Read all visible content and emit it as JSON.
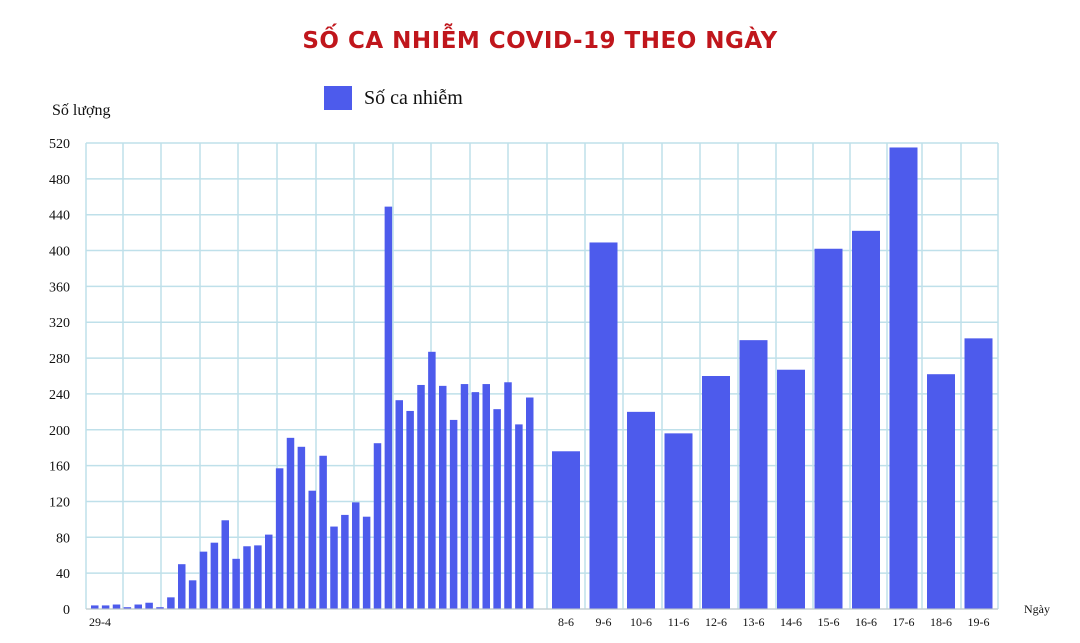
{
  "chart_data": {
    "type": "bar",
    "title": "SỐ CA NHIỄM COVID-19 THEO NGÀY",
    "ylabel": "Số lượng",
    "xlabel": "Ngày",
    "legend": {
      "label": "Số ca nhiễm",
      "position": "top-left"
    },
    "ylim": [
      0,
      520
    ],
    "yticks": [
      0,
      40,
      80,
      120,
      160,
      200,
      240,
      280,
      320,
      360,
      400,
      440,
      480,
      520
    ],
    "grid": true,
    "colors": {
      "bar": "#4d5bec",
      "grid": "#bfe0ea",
      "title": "#c0161c"
    },
    "series": [
      {
        "name": "Số ca nhiễm",
        "values": [
          4,
          4,
          5,
          2,
          5,
          7,
          2,
          13,
          50,
          32,
          64,
          74,
          99,
          56,
          70,
          71,
          83,
          157,
          191,
          181,
          132,
          171,
          92,
          105,
          119,
          103,
          185,
          449,
          233,
          221,
          250,
          287,
          249,
          211,
          251,
          242,
          251,
          223,
          253,
          206,
          236
        ],
        "x_labels": [
          "29-4",
          "",
          "",
          "",
          "",
          "",
          "",
          "",
          "",
          "",
          "",
          "",
          "",
          "",
          "",
          "",
          "",
          "",
          "",
          "",
          "",
          "",
          "",
          "",
          "",
          "",
          "",
          "",
          "",
          "",
          "",
          "",
          "",
          "",
          "",
          "",
          "",
          "",
          "",
          "",
          ""
        ]
      },
      {
        "name": "Số ca nhiễm",
        "values": [
          176,
          409,
          220,
          196,
          260,
          300,
          267,
          402,
          422,
          515,
          262,
          302
        ],
        "x_labels": [
          "8-6",
          "9-6",
          "10-6",
          "11-6",
          "12-6",
          "13-6",
          "14-6",
          "15-6",
          "16-6",
          "17-6",
          "18-6",
          "19-6"
        ]
      }
    ]
  }
}
